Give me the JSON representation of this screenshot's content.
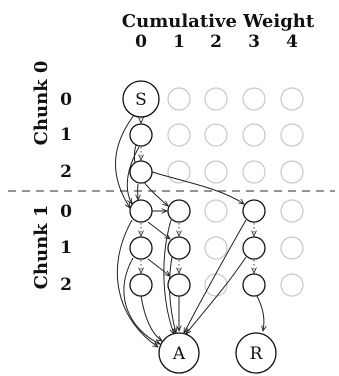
{
  "title": "Cumulative Weight",
  "columns": [
    "0",
    "1",
    "2",
    "3",
    "4"
  ],
  "chunks": [
    {
      "label": "Chunk 0",
      "rows": [
        "0",
        "1",
        "2"
      ]
    },
    {
      "label": "Chunk 1",
      "rows": [
        "0",
        "1",
        "2"
      ]
    }
  ],
  "nodes": {
    "start": "S",
    "accept": "A",
    "reject": "R"
  }
}
